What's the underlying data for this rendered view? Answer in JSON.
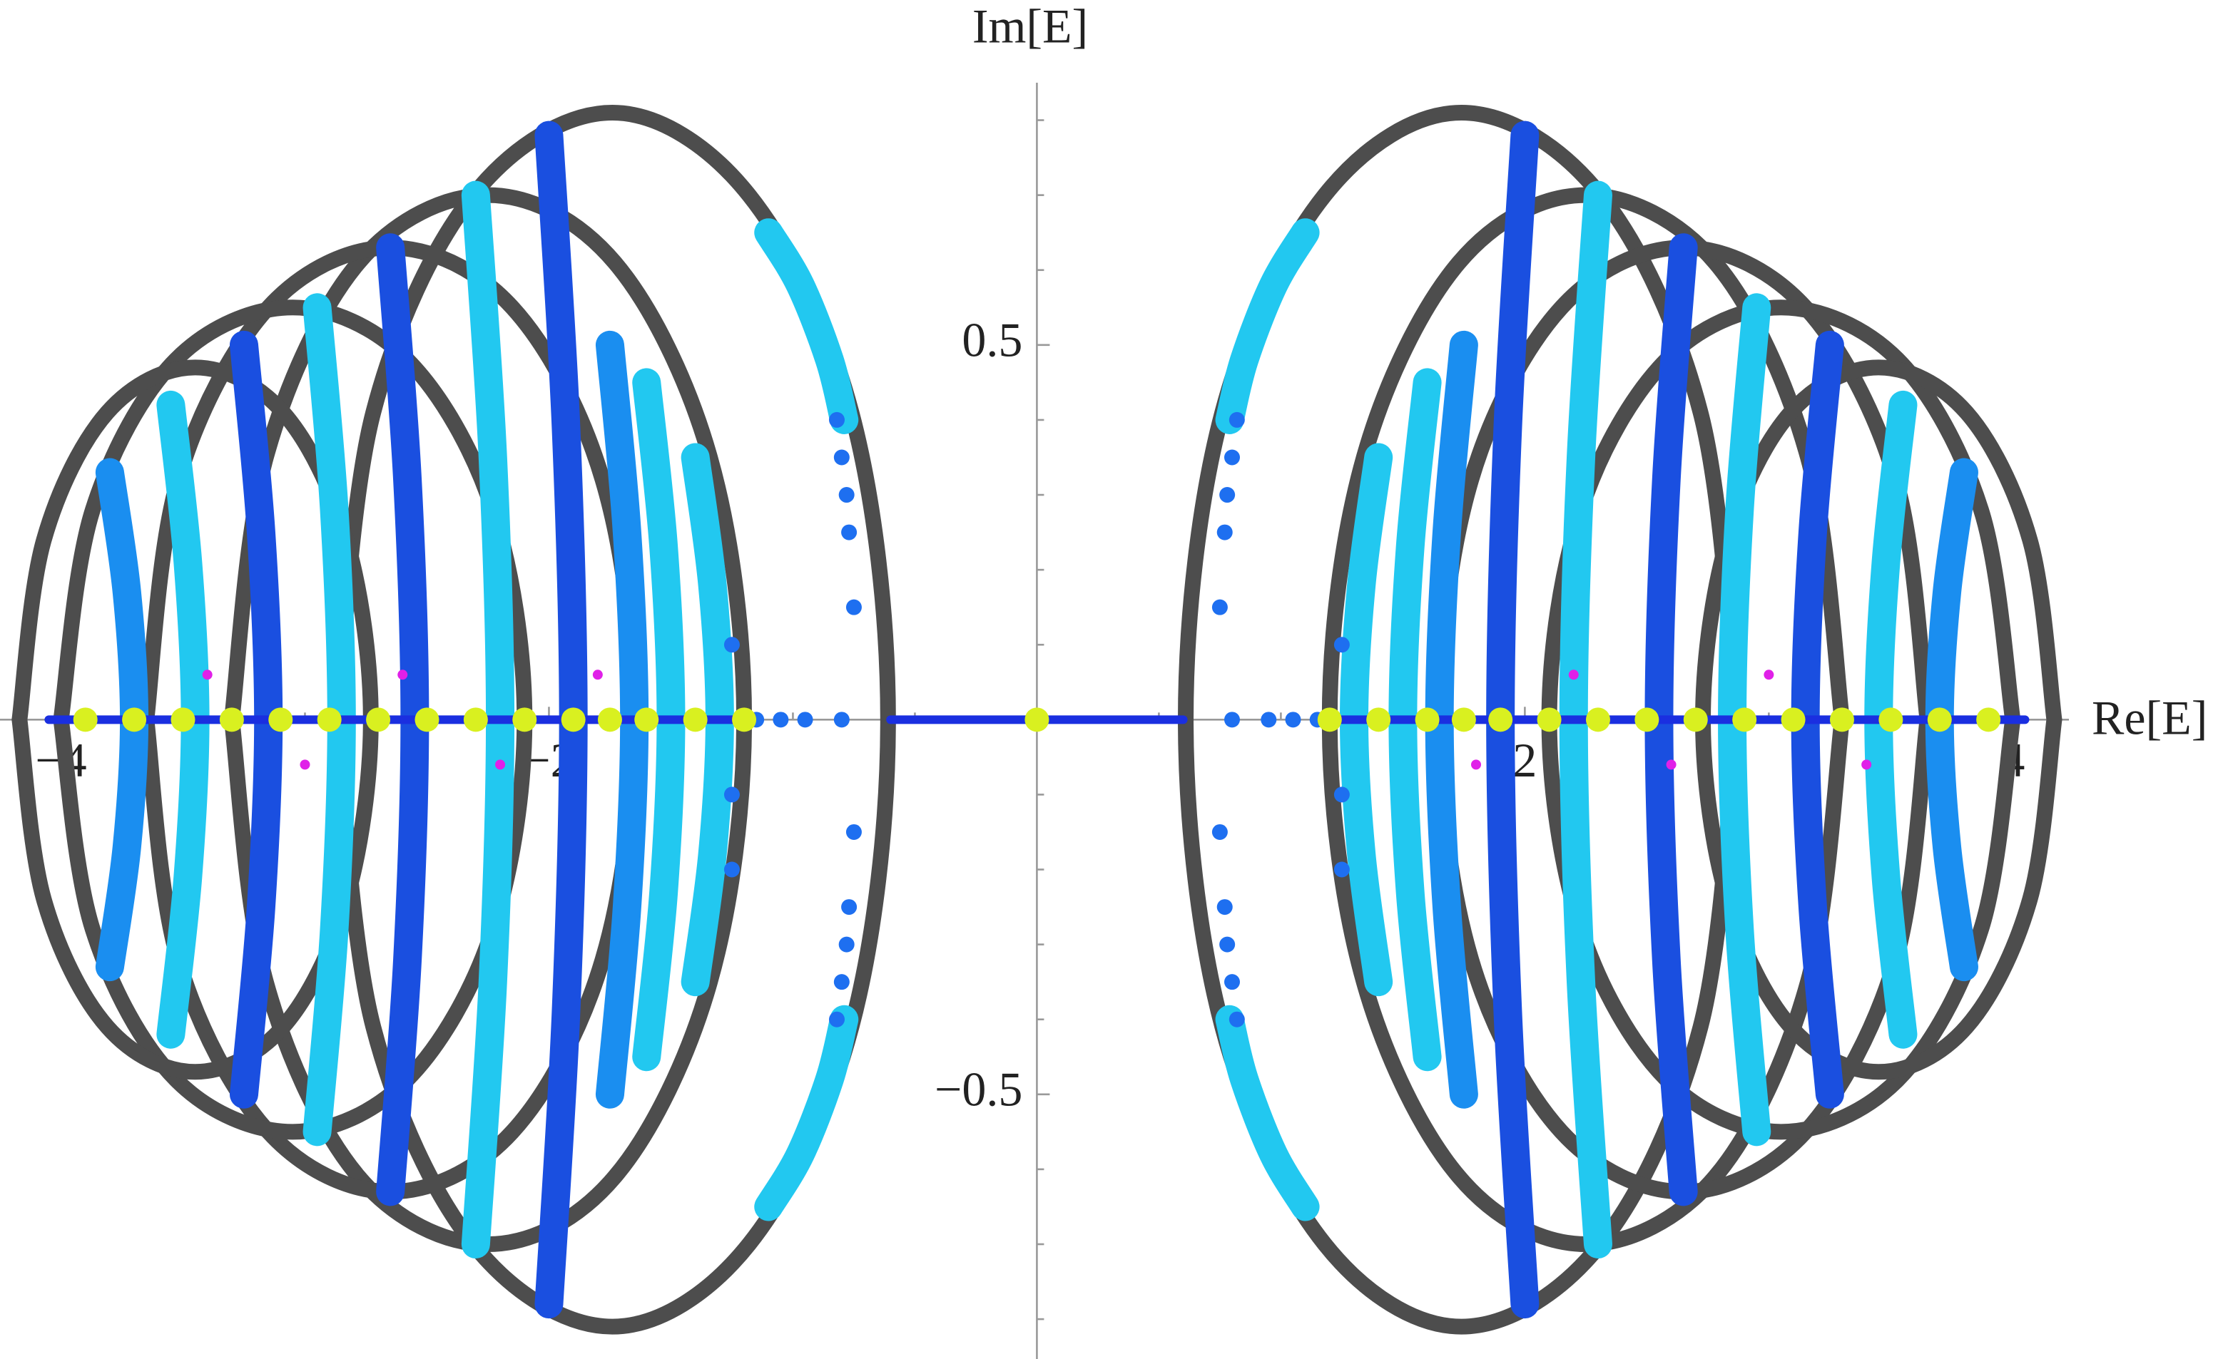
{
  "chart_data": {
    "type": "scatter",
    "x_label": "Re[E]",
    "y_label": "Im[E]",
    "xlim": [
      -4.25,
      4.23
    ],
    "ylim": [
      -0.857,
      0.85
    ],
    "xticks": [
      {
        "value": -4,
        "label": "−4"
      },
      {
        "value": -2,
        "label": "−2"
      },
      2,
      4
    ],
    "yticks": [
      {
        "value": -0.5,
        "label": "−0.5"
      },
      0.5
    ],
    "xminorticks": [
      -3.5,
      -3,
      -2.5,
      -1.5,
      -1,
      -0.5,
      0.5,
      1,
      1.5,
      2.5,
      3,
      3.5
    ],
    "yminorticks": [
      -0.8,
      -0.7,
      -0.6,
      -0.4,
      -0.3,
      -0.2,
      -0.1,
      0.1,
      0.2,
      0.3,
      0.4,
      0.6,
      0.7,
      0.8
    ],
    "grid": false,
    "series": [
      {
        "mode": "ring",
        "color": "#4d4d4d",
        "x": [
          2.87,
          2.72,
          2.31,
          1.74,
          1.18,
          0.76,
          0.61,
          0.76,
          1.18,
          1.74,
          2.31,
          2.72,
          2.87
        ],
        "y": [
          0,
          0.41,
          0.7,
          0.81,
          0.7,
          0.41,
          0,
          -0.41,
          -0.7,
          -0.81,
          -0.7,
          -0.41,
          0
        ]
      },
      {
        "mode": "ring",
        "color": "#4d4d4d",
        "x": [
          3.3,
          3.16,
          2.78,
          2.25,
          1.73,
          1.34,
          1.2,
          1.34,
          1.73,
          2.25,
          2.78,
          3.16,
          3.3
        ],
        "y": [
          0,
          0.35,
          0.61,
          0.7,
          0.61,
          0.35,
          0,
          -0.35,
          -0.61,
          -0.7,
          -0.61,
          -0.35,
          0
        ]
      },
      {
        "mode": "ring",
        "color": "#4d4d4d",
        "x": [
          3.65,
          3.52,
          3.15,
          2.65,
          2.15,
          1.78,
          1.65,
          1.78,
          2.15,
          2.65,
          3.15,
          3.52,
          3.65
        ],
        "y": [
          0,
          0.32,
          0.55,
          0.63,
          0.55,
          0.32,
          0,
          -0.32,
          -0.55,
          -0.63,
          -0.55,
          -0.32,
          0
        ]
      },
      {
        "mode": "ring",
        "color": "#4d4d4d",
        "x": [
          4.0,
          3.87,
          3.53,
          3.05,
          2.58,
          2.23,
          2.1,
          2.23,
          2.58,
          3.05,
          3.53,
          3.87,
          4.0
        ],
        "y": [
          0,
          0.28,
          0.48,
          0.55,
          0.48,
          0.28,
          0,
          -0.28,
          -0.48,
          -0.55,
          -0.48,
          -0.28,
          0
        ]
      },
      {
        "mode": "ring",
        "color": "#4d4d4d",
        "x": [
          4.17,
          4.07,
          3.81,
          3.45,
          3.09,
          2.83,
          2.73,
          2.83,
          3.09,
          3.45,
          3.81,
          4.07,
          4.17
        ],
        "y": [
          0,
          0.24,
          0.41,
          0.47,
          0.41,
          0.24,
          0,
          -0.24,
          -0.41,
          -0.47,
          -0.41,
          -0.24,
          0
        ]
      },
      {
        "mode": "ring",
        "color": "#4d4d4d",
        "x": [
          -2.87,
          -2.72,
          -2.31,
          -1.74,
          -1.18,
          -0.76,
          -0.61,
          -0.76,
          -1.18,
          -1.74,
          -2.31,
          -2.72,
          -2.87
        ],
        "y": [
          0,
          0.41,
          0.7,
          0.81,
          0.7,
          0.41,
          0,
          -0.41,
          -0.7,
          -0.81,
          -0.7,
          -0.41,
          0
        ]
      },
      {
        "mode": "ring",
        "color": "#4d4d4d",
        "x": [
          -3.3,
          -3.16,
          -2.78,
          -2.25,
          -1.73,
          -1.34,
          -1.2,
          -1.34,
          -1.73,
          -2.25,
          -2.78,
          -3.16,
          -3.3
        ],
        "y": [
          0,
          0.35,
          0.61,
          0.7,
          0.61,
          0.35,
          0,
          -0.35,
          -0.61,
          -0.7,
          -0.61,
          -0.35,
          0
        ]
      },
      {
        "mode": "ring",
        "color": "#4d4d4d",
        "x": [
          -3.65,
          -3.52,
          -3.15,
          -2.65,
          -2.15,
          -1.78,
          -1.65,
          -1.78,
          -2.15,
          -2.65,
          -3.15,
          -3.52,
          -3.65
        ],
        "y": [
          0,
          0.32,
          0.55,
          0.63,
          0.55,
          0.32,
          0,
          -0.32,
          -0.55,
          -0.63,
          -0.55,
          -0.32,
          0
        ]
      },
      {
        "mode": "ring",
        "color": "#4d4d4d",
        "x": [
          -4.0,
          -3.87,
          -3.53,
          -3.05,
          -2.58,
          -2.23,
          -2.1,
          -2.23,
          -2.58,
          -3.05,
          -3.53,
          -3.87,
          -4.0
        ],
        "y": [
          0,
          0.28,
          0.48,
          0.55,
          0.48,
          0.28,
          0,
          -0.28,
          -0.48,
          -0.55,
          -0.48,
          -0.28,
          0
        ]
      },
      {
        "mode": "ring",
        "color": "#4d4d4d",
        "x": [
          -4.17,
          -4.07,
          -3.81,
          -3.45,
          -3.09,
          -2.83,
          -2.73,
          -2.83,
          -3.09,
          -3.45,
          -3.81,
          -4.07,
          -4.17
        ],
        "y": [
          0,
          0.24,
          0.41,
          0.47,
          0.41,
          0.24,
          0,
          -0.24,
          -0.41,
          -0.47,
          -0.41,
          -0.24,
          0
        ]
      },
      {
        "mode": "arc",
        "color": "#22c8f0",
        "x": [
          1.4,
          1.33,
          1.3,
          1.33,
          1.4
        ],
        "y": [
          0.35,
          0.18,
          0,
          -0.18,
          -0.35
        ]
      },
      {
        "mode": "arc",
        "color": "#22c8f0",
        "x": [
          1.6,
          1.53,
          1.5,
          1.53,
          1.6
        ],
        "y": [
          0.45,
          0.23,
          0,
          -0.23,
          -0.45
        ]
      },
      {
        "mode": "arc",
        "color": "#1a8ef0",
        "x": [
          1.75,
          1.68,
          1.65,
          1.68,
          1.75
        ],
        "y": [
          0.5,
          0.25,
          0,
          -0.25,
          -0.5
        ]
      },
      {
        "mode": "arc",
        "color": "#1a4fe0",
        "x": [
          2.0,
          1.93,
          1.9,
          1.93,
          2.0
        ],
        "y": [
          0.78,
          0.39,
          0,
          -0.39,
          -0.78
        ]
      },
      {
        "mode": "arc",
        "color": "#22c8f0",
        "x": [
          2.3,
          2.23,
          2.2,
          2.23,
          2.3
        ],
        "y": [
          0.7,
          0.35,
          0,
          -0.35,
          -0.7
        ]
      },
      {
        "mode": "arc",
        "color": "#1a4fe0",
        "x": [
          2.65,
          2.58,
          2.55,
          2.58,
          2.65
        ],
        "y": [
          0.63,
          0.32,
          0,
          -0.32,
          -0.63
        ]
      },
      {
        "mode": "arc",
        "color": "#22c8f0",
        "x": [
          2.95,
          2.88,
          2.85,
          2.88,
          2.95
        ],
        "y": [
          0.55,
          0.28,
          0,
          -0.28,
          -0.55
        ]
      },
      {
        "mode": "arc",
        "color": "#1a4fe0",
        "x": [
          3.25,
          3.18,
          3.15,
          3.18,
          3.25
        ],
        "y": [
          0.5,
          0.25,
          0,
          -0.25,
          -0.5
        ]
      },
      {
        "mode": "arc",
        "color": "#22c8f0",
        "x": [
          3.55,
          3.48,
          3.45,
          3.48,
          3.55
        ],
        "y": [
          0.42,
          0.21,
          0,
          -0.21,
          -0.42
        ]
      },
      {
        "mode": "arc",
        "color": "#1a8ef0",
        "x": [
          3.8,
          3.73,
          3.7,
          3.73,
          3.8
        ],
        "y": [
          0.33,
          0.17,
          0,
          -0.17,
          -0.33
        ]
      },
      {
        "mode": "arc",
        "color": "#22c8f0",
        "x": [
          -1.4,
          -1.33,
          -1.3,
          -1.33,
          -1.4
        ],
        "y": [
          0.35,
          0.18,
          0,
          -0.18,
          -0.35
        ]
      },
      {
        "mode": "arc",
        "color": "#22c8f0",
        "x": [
          -1.6,
          -1.53,
          -1.5,
          -1.53,
          -1.6
        ],
        "y": [
          0.45,
          0.23,
          0,
          -0.23,
          -0.45
        ]
      },
      {
        "mode": "arc",
        "color": "#1a8ef0",
        "x": [
          -1.75,
          -1.68,
          -1.65,
          -1.68,
          -1.75
        ],
        "y": [
          0.5,
          0.25,
          0,
          -0.25,
          -0.5
        ]
      },
      {
        "mode": "arc",
        "color": "#1a4fe0",
        "x": [
          -2.0,
          -1.93,
          -1.9,
          -1.93,
          -2.0
        ],
        "y": [
          0.78,
          0.39,
          0,
          -0.39,
          -0.78
        ]
      },
      {
        "mode": "arc",
        "color": "#22c8f0",
        "x": [
          -2.3,
          -2.23,
          -2.2,
          -2.23,
          -2.3
        ],
        "y": [
          0.7,
          0.35,
          0,
          -0.35,
          -0.7
        ]
      },
      {
        "mode": "arc",
        "color": "#1a4fe0",
        "x": [
          -2.65,
          -2.58,
          -2.55,
          -2.58,
          -2.65
        ],
        "y": [
          0.63,
          0.32,
          0,
          -0.32,
          -0.63
        ]
      },
      {
        "mode": "arc",
        "color": "#22c8f0",
        "x": [
          -2.95,
          -2.88,
          -2.85,
          -2.88,
          -2.95
        ],
        "y": [
          0.55,
          0.28,
          0,
          -0.28,
          -0.55
        ]
      },
      {
        "mode": "arc",
        "color": "#1a4fe0",
        "x": [
          -3.25,
          -3.18,
          -3.15,
          -3.18,
          -3.25
        ],
        "y": [
          0.5,
          0.25,
          0,
          -0.25,
          -0.5
        ]
      },
      {
        "mode": "arc",
        "color": "#22c8f0",
        "x": [
          -3.55,
          -3.48,
          -3.45,
          -3.48,
          -3.55
        ],
        "y": [
          0.42,
          0.21,
          0,
          -0.21,
          -0.42
        ]
      },
      {
        "mode": "arc",
        "color": "#1a8ef0",
        "x": [
          -3.8,
          -3.73,
          -3.7,
          -3.73,
          -3.8
        ],
        "y": [
          0.33,
          0.17,
          0,
          -0.17,
          -0.33
        ]
      },
      {
        "mode": "arc",
        "color": "#22c8f0",
        "x": [
          1.1,
          0.97,
          0.85,
          0.79,
          null,
          0.79,
          0.85,
          0.97,
          1.1
        ],
        "y": [
          0.65,
          0.58,
          0.48,
          0.4,
          null,
          -0.4,
          -0.48,
          -0.58,
          -0.65
        ]
      },
      {
        "mode": "arc",
        "color": "#22c8f0",
        "x": [
          -1.1,
          -0.97,
          -0.85,
          -0.79,
          null,
          -0.79,
          -0.85,
          -0.97,
          -1.1
        ],
        "y": [
          0.65,
          0.58,
          0.48,
          0.4,
          null,
          -0.4,
          -0.48,
          -0.58,
          -0.65
        ]
      },
      {
        "mode": "dots",
        "color": "#1e6ff0",
        "x": [
          0.75,
          0.77,
          0.78,
          0.8,
          0.82,
          0.75,
          0.77,
          0.78,
          0.8,
          0.82,
          -0.75,
          -0.77,
          -0.78,
          -0.8,
          -0.82,
          -0.75,
          -0.77,
          -0.78,
          -0.8,
          -0.82,
          1.25,
          1.25,
          1.25,
          -1.25,
          -1.25,
          -1.25
        ],
        "y": [
          0.15,
          0.25,
          0.3,
          0.35,
          0.4,
          -0.15,
          -0.25,
          -0.3,
          -0.35,
          -0.4,
          0.15,
          0.25,
          0.3,
          0.35,
          0.4,
          -0.15,
          -0.25,
          -0.3,
          -0.35,
          -0.4,
          0.1,
          -0.1,
          -0.2,
          0.1,
          -0.1,
          -0.2
        ]
      },
      {
        "mode": "line",
        "color": "#1a2fe0",
        "x": [
          -4.05,
          -1.2,
          null,
          -0.6,
          0,
          0.6,
          null,
          1.2,
          4.05
        ],
        "y": [
          0,
          0,
          null,
          0,
          0,
          0,
          null,
          0,
          0
        ]
      },
      {
        "mode": "dots",
        "color": "#1e6ff0",
        "x": [
          -1.15,
          -1.05,
          -0.95,
          -0.8,
          0.8,
          0.95,
          1.05,
          1.15
        ],
        "y": [
          0,
          0,
          0,
          0,
          0,
          0,
          0,
          0
        ]
      },
      {
        "mode": "small",
        "color": "#e020e8",
        "x": [
          -3.4,
          -3.0,
          -2.6,
          -2.2,
          -1.8,
          1.8,
          2.2,
          2.6,
          3.0,
          3.4
        ],
        "y": [
          0.06,
          -0.06,
          0.06,
          -0.06,
          0.06,
          -0.06,
          0.06,
          -0.06,
          0.06,
          -0.06
        ]
      },
      {
        "mode": "points",
        "color": "#d9f020",
        "x": [
          -3.9,
          -3.7,
          -3.5,
          -3.3,
          -3.1,
          -2.9,
          -2.7,
          -2.5,
          -2.3,
          -2.1,
          -1.9,
          -1.75,
          -1.6,
          -1.4,
          -1.2,
          0,
          1.2,
          1.4,
          1.6,
          1.75,
          1.9,
          2.1,
          2.3,
          2.5,
          2.7,
          2.9,
          3.1,
          3.3,
          3.5,
          3.7,
          3.9
        ],
        "y": [
          0,
          0,
          0,
          0,
          0,
          0,
          0,
          0,
          0,
          0,
          0,
          0,
          0,
          0,
          0,
          0,
          0,
          0,
          0,
          0,
          0,
          0,
          0,
          0,
          0,
          0,
          0,
          0,
          0,
          0,
          0
        ]
      }
    ]
  }
}
